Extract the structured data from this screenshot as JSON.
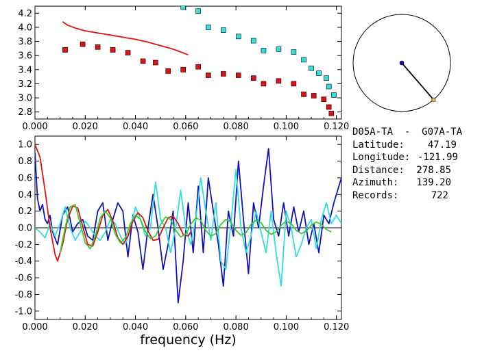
{
  "colors": {
    "red": "#dd1111",
    "cyan": "#33dddd",
    "blue": "#1111bb",
    "green": "#33cc33",
    "axis": "#000000",
    "marker": "#e8c24a"
  },
  "info": {
    "station_pair": "D05A-TA  -  G07A-TA",
    "rows": [
      {
        "key": "Latitude:",
        "value": "47.19"
      },
      {
        "key": "Longitude:",
        "value": "-121.99"
      },
      {
        "key": "Distance:",
        "value": "278.85"
      },
      {
        "key": "Azimuth:",
        "value": "139.20"
      },
      {
        "key": "Records:",
        "value": "722"
      }
    ]
  },
  "chart_data": [
    {
      "type": "scatter",
      "title": "",
      "xlabel": "",
      "ylabel": "",
      "xlim": [
        0.0,
        0.122
      ],
      "ylim": [
        2.7,
        4.3
      ],
      "xticks": [
        "0.000",
        "0.020",
        "0.040",
        "0.060",
        "0.080",
        "0.100",
        "0.120"
      ],
      "yticks": [
        "2.8",
        "3.0",
        "3.2",
        "3.4",
        "3.6",
        "3.8",
        "4.0",
        "4.2"
      ],
      "series": [
        {
          "color": "red",
          "mode": "line",
          "x": [
            0.011,
            0.013,
            0.016,
            0.02,
            0.025,
            0.03,
            0.035,
            0.04,
            0.045,
            0.05,
            0.055,
            0.058,
            0.061
          ],
          "y": [
            4.08,
            4.03,
            3.99,
            3.95,
            3.92,
            3.89,
            3.86,
            3.83,
            3.79,
            3.74,
            3.69,
            3.65,
            3.61
          ]
        },
        {
          "color": "red",
          "mode": "markers",
          "x": [
            0.012,
            0.019,
            0.025,
            0.031,
            0.037,
            0.043,
            0.048,
            0.053,
            0.059,
            0.065,
            0.069,
            0.075,
            0.081,
            0.087,
            0.091,
            0.097,
            0.103,
            0.107,
            0.111,
            0.115,
            0.117,
            0.118
          ],
          "y": [
            3.68,
            3.76,
            3.72,
            3.68,
            3.64,
            3.52,
            3.5,
            3.38,
            3.4,
            3.44,
            3.32,
            3.34,
            3.32,
            3.28,
            3.2,
            3.24,
            3.2,
            3.05,
            3.03,
            2.98,
            2.87,
            2.78
          ]
        },
        {
          "color": "cyan",
          "mode": "markers",
          "x": [
            0.059,
            0.065,
            0.069,
            0.075,
            0.081,
            0.087,
            0.091,
            0.097,
            0.103,
            0.107,
            0.11,
            0.113,
            0.116,
            0.117,
            0.119
          ],
          "y": [
            4.29,
            4.23,
            4.0,
            3.96,
            3.87,
            3.81,
            3.67,
            3.69,
            3.65,
            3.54,
            3.42,
            3.35,
            3.28,
            3.16,
            3.04
          ]
        }
      ]
    },
    {
      "type": "line",
      "title": "",
      "xlabel": "frequency (Hz)",
      "ylabel": "",
      "xlim": [
        0.0,
        0.122
      ],
      "ylim": [
        -1.1,
        1.1
      ],
      "xticks": [
        "0.000",
        "0.020",
        "0.040",
        "0.060",
        "0.080",
        "0.100",
        "0.120"
      ],
      "yticks": [
        "1.0",
        "0.8",
        "0.6",
        "0.4",
        "0.2",
        "0.0",
        "-0.2",
        "-0.4",
        "-0.6",
        "-0.8",
        "-1.0"
      ],
      "series": [
        {
          "color": "blue",
          "x": [
            0.0,
            0.001,
            0.002,
            0.003,
            0.004,
            0.005,
            0.006,
            0.007,
            0.009,
            0.011,
            0.013,
            0.015,
            0.017,
            0.019,
            0.021,
            0.023,
            0.025,
            0.027,
            0.029,
            0.031,
            0.033,
            0.035,
            0.037,
            0.039,
            0.041,
            0.043,
            0.045,
            0.047,
            0.049,
            0.051,
            0.053,
            0.055,
            0.057,
            0.059,
            0.061,
            0.063,
            0.065,
            0.067,
            0.069,
            0.071,
            0.073,
            0.075,
            0.077,
            0.079,
            0.081,
            0.083,
            0.085,
            0.087,
            0.089,
            0.091,
            0.093,
            0.095,
            0.097,
            0.099,
            0.101,
            0.103,
            0.105,
            0.107,
            0.109,
            0.111,
            0.113,
            0.115,
            0.117,
            0.119,
            0.121,
            0.122
          ],
          "y": [
            0.9,
            0.35,
            0.2,
            0.28,
            0.1,
            0.05,
            0.15,
            -0.05,
            -0.2,
            0.15,
            0.25,
            -0.05,
            0.05,
            0.1,
            -0.1,
            -0.15,
            0.2,
            0.3,
            -0.15,
            0.1,
            0.3,
            0.2,
            -0.35,
            0.15,
            -0.05,
            -0.5,
            0.0,
            0.4,
            0.0,
            -0.5,
            -0.2,
            0.2,
            -0.9,
            -0.4,
            0.3,
            -0.3,
            0.5,
            -0.3,
            0.6,
            0.2,
            -0.2,
            -0.7,
            0.2,
            -0.1,
            0.8,
            0.1,
            -0.55,
            0.3,
            0.0,
            0.5,
            0.95,
            0.1,
            -0.1,
            0.3,
            -0.1,
            0.25,
            -0.05,
            0.2,
            -0.2,
            0.05,
            -0.3,
            0.15,
            0.05,
            0.3,
            0.5,
            0.6
          ]
        },
        {
          "color": "cyan",
          "x": [
            0.0,
            0.002,
            0.004,
            0.006,
            0.008,
            0.01,
            0.012,
            0.014,
            0.016,
            0.018,
            0.02,
            0.022,
            0.024,
            0.026,
            0.028,
            0.03,
            0.032,
            0.034,
            0.036,
            0.038,
            0.04,
            0.042,
            0.044,
            0.046,
            0.048,
            0.05,
            0.052,
            0.054,
            0.056,
            0.058,
            0.06,
            0.062,
            0.064,
            0.066,
            0.068,
            0.07,
            0.072,
            0.074,
            0.076,
            0.078,
            0.08,
            0.082,
            0.084,
            0.086,
            0.088,
            0.09,
            0.092,
            0.094,
            0.096,
            0.098,
            0.1,
            0.102,
            0.104,
            0.106,
            0.108,
            0.11,
            0.112,
            0.114,
            0.116,
            0.118,
            0.12,
            0.122
          ],
          "y": [
            0.0,
            -0.05,
            -0.12,
            0.05,
            -0.1,
            0.05,
            0.25,
            0.0,
            -0.15,
            -0.05,
            0.08,
            0.0,
            -0.1,
            -0.15,
            -0.05,
            0.1,
            0.05,
            -0.1,
            -0.2,
            0.0,
            0.25,
            0.1,
            -0.1,
            0.0,
            0.55,
            0.1,
            0.0,
            -0.3,
            0.0,
            0.45,
            0.0,
            -0.2,
            0.1,
            0.6,
            0.2,
            -0.15,
            0.3,
            -0.4,
            -0.5,
            0.05,
            0.7,
            0.0,
            -0.3,
            -0.1,
            0.2,
            -0.05,
            -0.3,
            0.2,
            -0.3,
            -0.7,
            0.2,
            0.0,
            -0.35,
            -0.2,
            0.0,
            0.1,
            -0.25,
            0.1,
            0.3,
            0.05,
            0.15,
            0.05
          ]
        },
        {
          "color": "red",
          "x": [
            0.0,
            0.002,
            0.004,
            0.006,
            0.008,
            0.009,
            0.011,
            0.013,
            0.015,
            0.017,
            0.019,
            0.021,
            0.023,
            0.025,
            0.027,
            0.029,
            0.031,
            0.033,
            0.035,
            0.037,
            0.039,
            0.041,
            0.043,
            0.045,
            0.047,
            0.049,
            0.051,
            0.053,
            0.055,
            0.057,
            0.059,
            0.061,
            0.062
          ],
          "y": [
            1.0,
            0.85,
            0.45,
            0.0,
            -0.32,
            -0.4,
            -0.2,
            0.1,
            0.26,
            0.24,
            0.02,
            -0.2,
            -0.22,
            -0.05,
            0.15,
            0.22,
            0.08,
            -0.12,
            -0.2,
            -0.1,
            0.08,
            0.18,
            0.12,
            -0.04,
            -0.15,
            -0.14,
            0.0,
            0.12,
            0.14,
            0.05,
            -0.08,
            -0.1,
            -0.05
          ]
        },
        {
          "color": "green",
          "x": [
            0.01,
            0.012,
            0.014,
            0.016,
            0.018,
            0.02,
            0.022,
            0.024,
            0.026,
            0.028,
            0.03,
            0.032,
            0.034,
            0.036,
            0.038,
            0.04,
            0.042,
            0.044,
            0.046,
            0.048,
            0.05,
            0.052,
            0.054,
            0.056,
            0.058,
            0.06,
            0.062,
            0.064,
            0.066,
            0.068,
            0.07,
            0.072,
            0.074,
            0.076,
            0.078,
            0.08,
            0.082,
            0.084,
            0.086,
            0.088,
            0.09,
            0.092,
            0.094,
            0.096,
            0.098,
            0.1,
            0.102,
            0.104,
            0.106,
            0.108,
            0.11,
            0.112,
            0.114,
            0.116,
            0.118
          ],
          "y": [
            -0.3,
            0.0,
            0.25,
            0.28,
            0.05,
            -0.18,
            -0.25,
            -0.1,
            0.12,
            0.2,
            0.12,
            -0.08,
            -0.18,
            -0.12,
            0.05,
            0.15,
            0.1,
            -0.05,
            -0.13,
            -0.1,
            0.04,
            0.13,
            0.1,
            -0.03,
            -0.11,
            -0.08,
            0.04,
            0.12,
            0.09,
            -0.03,
            -0.1,
            -0.07,
            0.04,
            0.1,
            0.07,
            -0.03,
            -0.09,
            -0.06,
            0.04,
            0.09,
            0.06,
            -0.03,
            -0.08,
            -0.05,
            0.03,
            0.08,
            0.05,
            -0.03,
            -0.07,
            -0.04,
            0.03,
            0.07,
            0.04,
            -0.02,
            -0.05
          ]
        }
      ]
    }
  ],
  "azimuth_dial": {
    "azimuth_deg": 139.2
  }
}
